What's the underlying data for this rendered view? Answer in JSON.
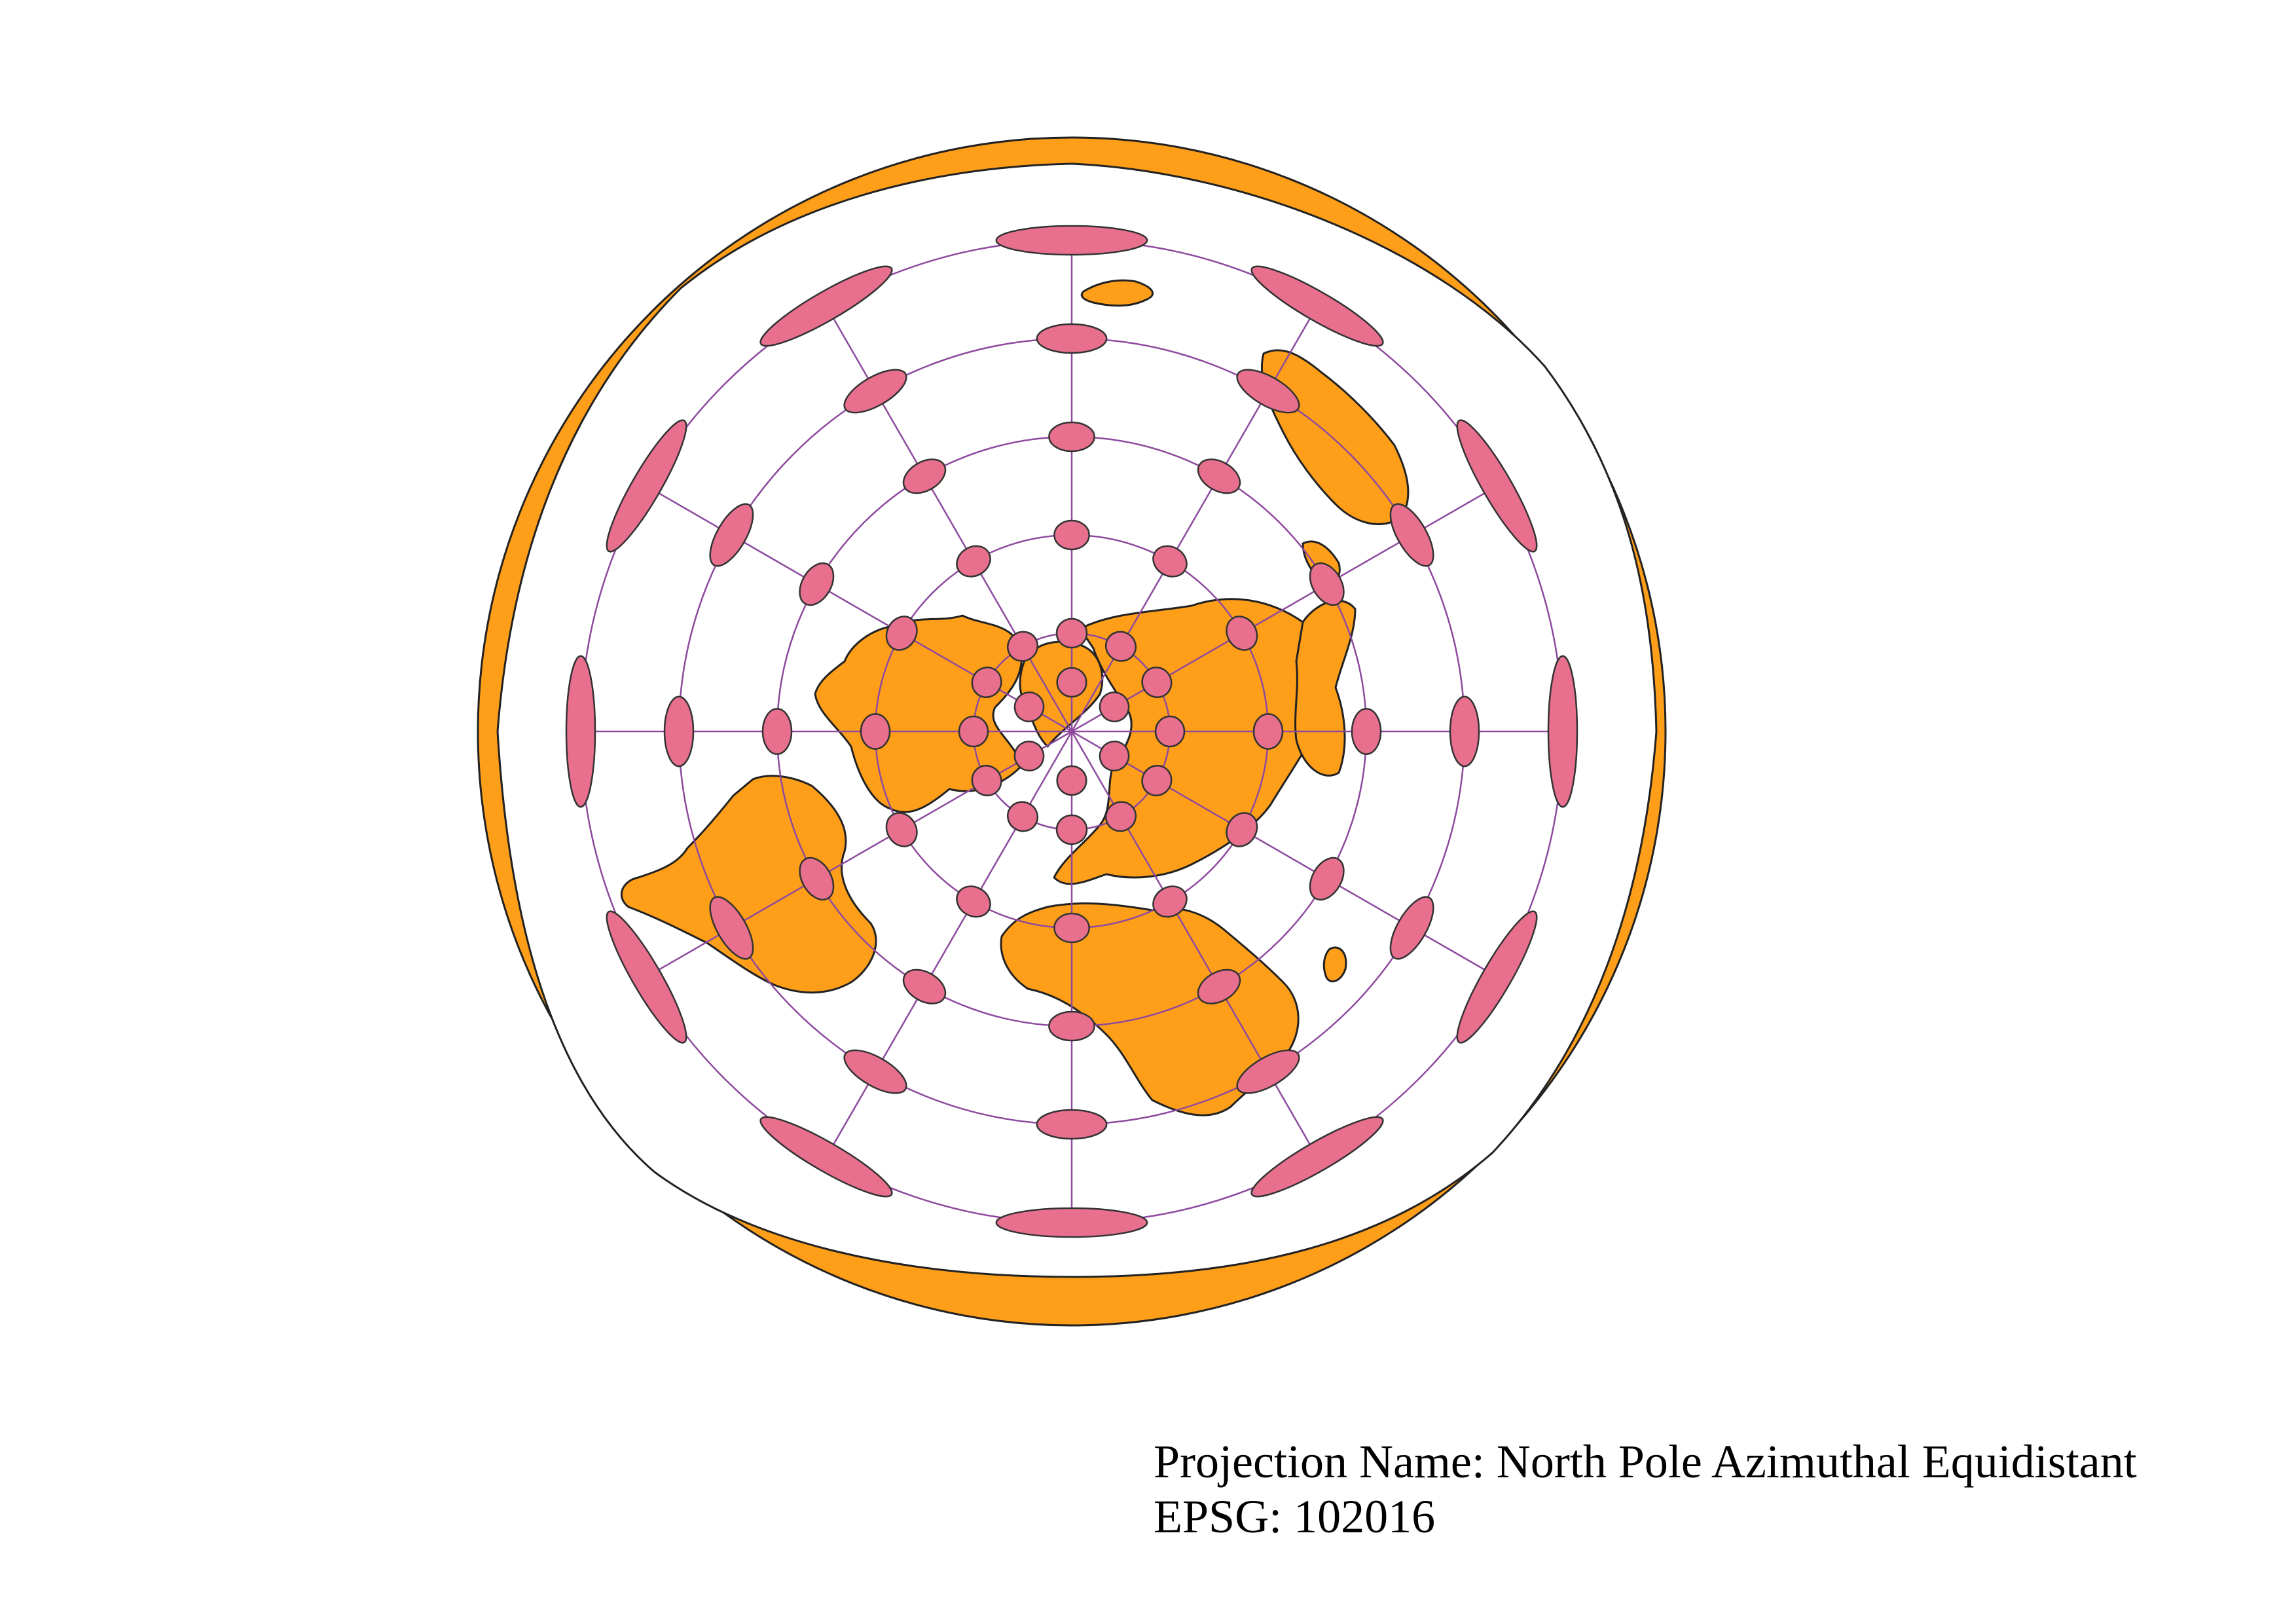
{
  "map": {
    "projection_label": "Projection Name: North Pole Azimuthal Equidistant",
    "epsg_label": "EPSG: 102016",
    "colors": {
      "land": "#FF9E18",
      "land_outline": "#222222",
      "ocean": "#ffffff",
      "indicatrix": "#E8708E",
      "graticule": "#8E4A9E"
    },
    "graticule": {
      "latitude_rings_deg": [
        60,
        30,
        0,
        -30,
        -60
      ],
      "meridian_step_deg": 30
    },
    "tissot_indicatrix": {
      "latitudes_deg": [
        60,
        30,
        0,
        -30,
        -60
      ],
      "meridian_step_deg": 30,
      "near_pole_latitude_deg": 75
    }
  }
}
